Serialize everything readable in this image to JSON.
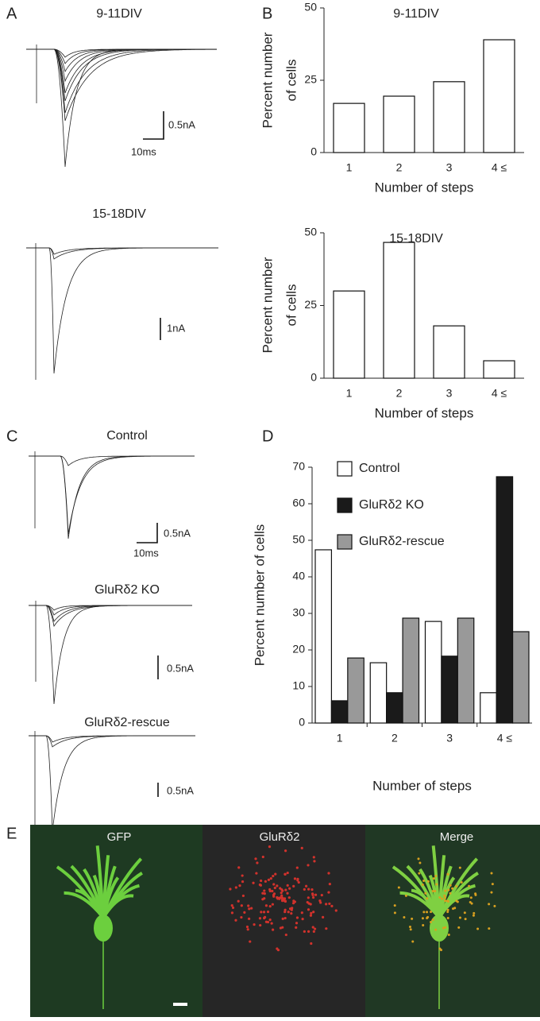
{
  "chart_data": [
    {
      "type": "bar",
      "title": "9-11DIV",
      "ylabel": [
        "Percent number",
        "of cells"
      ],
      "xlabel": "Number of steps",
      "categories": [
        "1",
        "2",
        "3",
        "4 ≤"
      ],
      "values": [
        17,
        19.5,
        24.5,
        39
      ],
      "color": "#ffffff",
      "ylim": [
        0,
        50
      ],
      "yticks": [
        0,
        25,
        50
      ]
    },
    {
      "type": "bar",
      "title": "15-18DIV",
      "ylabel": [
        "Percent number",
        "of cells"
      ],
      "xlabel": "Number of steps",
      "categories": [
        "1",
        "2",
        "3",
        "4 ≤"
      ],
      "values": [
        30,
        46.7,
        18,
        6
      ],
      "color": "#ffffff",
      "ylim": [
        0,
        50
      ],
      "yticks": [
        0,
        25,
        50
      ]
    },
    {
      "type": "bar",
      "ylabel": "Percent number of cells",
      "xlabel": "Number of steps",
      "categories": [
        "1",
        "2",
        "3",
        "4 ≤"
      ],
      "series": [
        {
          "name": "Control",
          "color": "#ffffff",
          "values": [
            47.4,
            16.5,
            27.8,
            8.3
          ]
        },
        {
          "name": "GluRδ2 KO",
          "color": "#1a1a1a",
          "values": [
            6.1,
            8.3,
            18.3,
            67.4
          ]
        },
        {
          "name": "GluRδ2-rescue",
          "color": "#999999",
          "values": [
            17.8,
            28.7,
            28.7,
            25
          ]
        }
      ],
      "ylim": [
        0,
        70
      ],
      "yticks": [
        0,
        10,
        20,
        30,
        40,
        50,
        60,
        70
      ]
    }
  ],
  "panels": {
    "a": "A",
    "b": "B",
    "c": "C",
    "d": "D",
    "e": "E"
  },
  "traces": [
    {
      "title": "9-11DIV",
      "scale_y": "0.5nA",
      "scale_x": "10ms"
    },
    {
      "title": "15-18DIV",
      "scale_y": "1nA"
    },
    {
      "title": "Control",
      "scale_y": "0.5nA",
      "scale_x": "10ms"
    },
    {
      "title": "GluRδ2 KO",
      "scale_y": "0.5nA"
    },
    {
      "title": "GluRδ2-rescue",
      "scale_y": "0.5nA"
    }
  ],
  "images": [
    "GFP",
    "GluRδ2",
    "Merge"
  ]
}
